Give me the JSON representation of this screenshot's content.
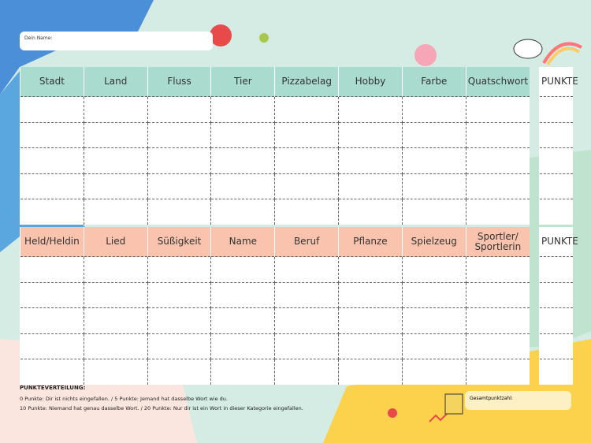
{
  "name_field": {
    "label": "Dein Name:"
  },
  "table1": {
    "headers": [
      "Stadt",
      "Land",
      "Fluss",
      "Tier",
      "Pizzabelag",
      "Hobby",
      "Farbe",
      "Quatschwort"
    ],
    "points_header": "PUNKTE"
  },
  "table2": {
    "headers": [
      "Held/Heldin",
      "Lied",
      "Süßigkeit",
      "Name",
      "Beruf",
      "Pflanze",
      "Spielzeug",
      "Sportler/ Sportlerin"
    ],
    "points_header": "PUNKTE"
  },
  "footer": {
    "title": "PUNKTEVERTEILUNG:",
    "lines": [
      "0 Punkte: Dir ist nichts eingefallen. / 5 Punkte: Jemand hat dasselbe Wort wie du.",
      "10 Punkte: Niemand hat genau dasselbe Wort. / 20 Punkte: Nur dir ist ein Wort in dieser Kategorie eingefallen."
    ],
    "total_label": "Gesamtpunktzahl:"
  }
}
